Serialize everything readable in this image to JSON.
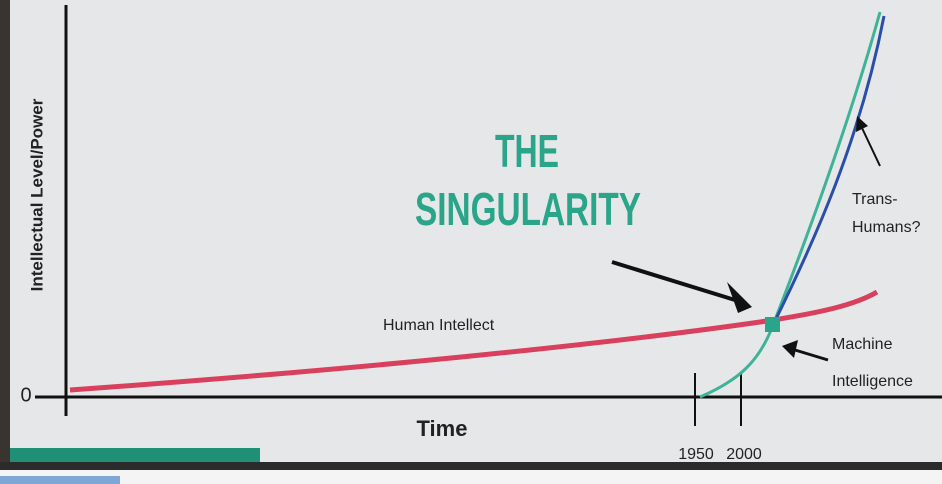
{
  "title": {
    "line1": "THE",
    "line2": "SINGULARITY"
  },
  "axes": {
    "y_label": "Intellectual Level/Power",
    "origin": "0",
    "x_label": "Time"
  },
  "labels": {
    "human": "Human Intellect",
    "machine": [
      "Machine",
      "Intelligence"
    ],
    "trans": [
      "Trans-",
      "Humans?"
    ]
  },
  "years": [
    "1950",
    "2000"
  ]
}
